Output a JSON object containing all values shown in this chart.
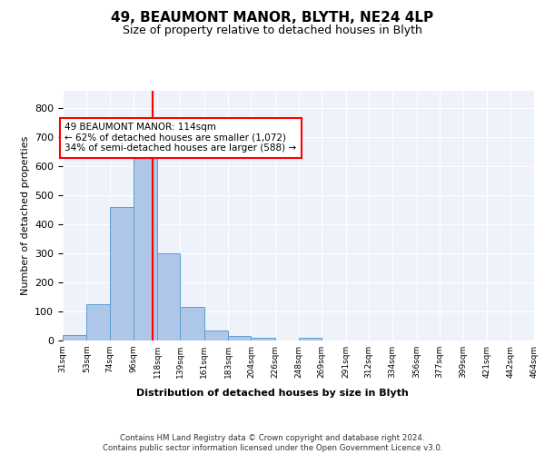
{
  "title1": "49, BEAUMONT MANOR, BLYTH, NE24 4LP",
  "title2": "Size of property relative to detached houses in Blyth",
  "xlabel": "Distribution of detached houses by size in Blyth",
  "ylabel": "Number of detached properties",
  "bar_edges": [
    31,
    53,
    74,
    96,
    118,
    139,
    161,
    183,
    204,
    226,
    248,
    269,
    291,
    312,
    334,
    356,
    377,
    399,
    421,
    442,
    464
  ],
  "bar_heights": [
    20,
    125,
    460,
    660,
    300,
    115,
    35,
    15,
    10,
    0,
    8,
    0,
    0,
    0,
    0,
    0,
    0,
    0,
    0,
    0
  ],
  "bar_color": "#aec6e8",
  "bar_edgecolor": "#5a9fd4",
  "property_line_x": 114,
  "property_line_color": "red",
  "annotation_text": "49 BEAUMONT MANOR: 114sqm\n← 62% of detached houses are smaller (1,072)\n34% of semi-detached houses are larger (588) →",
  "annotation_box_color": "white",
  "annotation_box_edgecolor": "red",
  "footer_text": "Contains HM Land Registry data © Crown copyright and database right 2024.\nContains public sector information licensed under the Open Government Licence v3.0.",
  "tick_labels": [
    "31sqm",
    "53sqm",
    "74sqm",
    "96sqm",
    "118sqm",
    "139sqm",
    "161sqm",
    "183sqm",
    "204sqm",
    "226sqm",
    "248sqm",
    "269sqm",
    "291sqm",
    "312sqm",
    "334sqm",
    "356sqm",
    "377sqm",
    "399sqm",
    "421sqm",
    "442sqm",
    "464sqm"
  ],
  "ylim": [
    0,
    860
  ],
  "background_color": "#eef3fb",
  "grid_color": "#ffffff",
  "title1_fontsize": 11,
  "title2_fontsize": 9
}
